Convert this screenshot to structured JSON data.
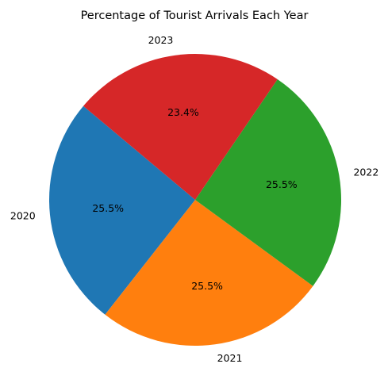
{
  "chart_data": {
    "type": "pie",
    "title": "Percentage of Tourist Arrivals Each Year",
    "categories": [
      "2020",
      "2021",
      "2022",
      "2023"
    ],
    "values": [
      25.5,
      25.5,
      25.5,
      23.4
    ],
    "value_labels": [
      "25.5%",
      "25.5%",
      "25.5%",
      "23.4%"
    ],
    "colors": [
      "#1f77b4",
      "#ff7f0e",
      "#2ca02c",
      "#d62728"
    ],
    "start_angle_deg": 140,
    "direction": "counterclockwise",
    "legend": "none"
  }
}
